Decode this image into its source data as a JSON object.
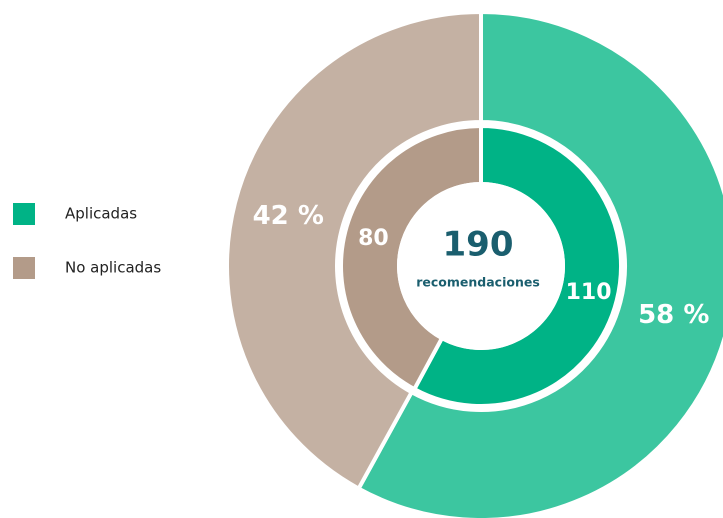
{
  "chart_data": {
    "type": "donut",
    "categories": [
      "Aplicadas",
      "No aplicadas"
    ],
    "colors": [
      "#00b386",
      "#b39b89"
    ],
    "outer": {
      "values": [
        58,
        42
      ],
      "value_labels": [
        "58 %",
        "42 %"
      ],
      "colors": [
        "#3cc6a0",
        "#c4b1a3"
      ]
    },
    "inner": {
      "values": [
        110,
        80
      ],
      "colors": [
        "#00b386",
        "#b39b89"
      ]
    },
    "center": {
      "total": 190,
      "label": "recomendaciones"
    }
  }
}
